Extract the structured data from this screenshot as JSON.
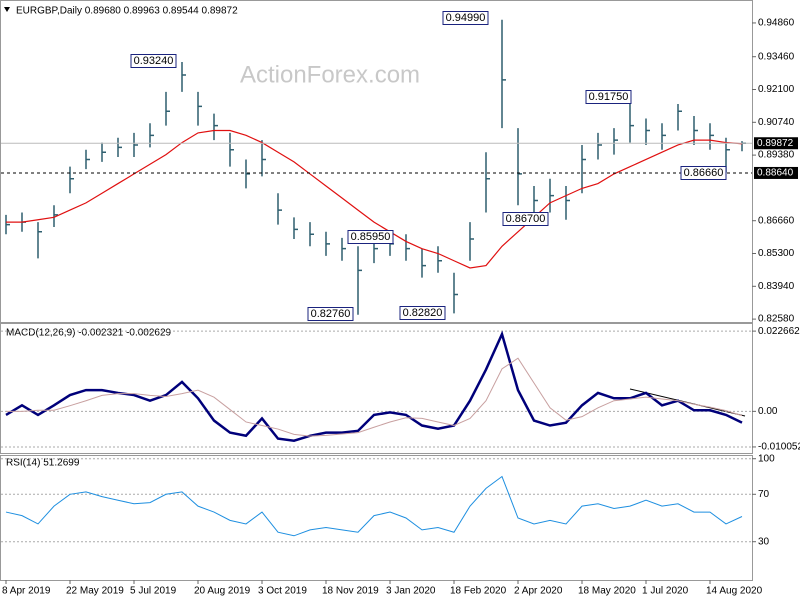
{
  "chart_data": [
    {
      "type": "ohlc",
      "title": "EURGBP,Daily  0.89680 0.89963 0.89544 0.89872",
      "watermark": "ActionForex.com",
      "color": "#2f5f6f",
      "ylim": [
        0.8246,
        0.9577
      ],
      "yticks": [
        {
          "value": 0.9486,
          "label": "0.94860"
        },
        {
          "value": 0.9346,
          "label": "0.93460"
        },
        {
          "value": 0.921,
          "label": "0.92100"
        },
        {
          "value": 0.9074,
          "label": "0.90740"
        },
        {
          "value": 0.8938,
          "label": "0.89380"
        },
        {
          "value": 0.8666,
          "label": "0.86660"
        },
        {
          "value": 0.853,
          "label": "0.85300"
        },
        {
          "value": 0.8394,
          "label": "0.83940"
        },
        {
          "value": 0.8258,
          "label": "0.82580"
        }
      ],
      "high": [
        0.869,
        0.87,
        0.866,
        0.873,
        0.889,
        0.896,
        0.899,
        0.901,
        0.903,
        0.907,
        0.92,
        0.9324,
        0.92,
        0.911,
        0.903,
        0.892,
        0.9,
        0.878,
        0.868,
        0.866,
        0.862,
        0.8595,
        0.856,
        0.86,
        0.862,
        0.861,
        0.855,
        0.856,
        0.845,
        0.866,
        0.895,
        0.9499,
        0.905,
        0.881,
        0.884,
        0.881,
        0.898,
        0.903,
        0.905,
        0.9175,
        0.909,
        0.907,
        0.915,
        0.91,
        0.907,
        0.901,
        0.8996
      ],
      "low": [
        0.861,
        0.862,
        0.851,
        0.864,
        0.878,
        0.888,
        0.891,
        0.893,
        0.893,
        0.897,
        0.906,
        0.92,
        0.906,
        0.9,
        0.889,
        0.88,
        0.885,
        0.865,
        0.859,
        0.856,
        0.852,
        0.85,
        0.8276,
        0.849,
        0.852,
        0.85,
        0.843,
        0.845,
        0.8282,
        0.85,
        0.87,
        0.905,
        0.873,
        0.867,
        0.87,
        0.867,
        0.878,
        0.892,
        0.894,
        0.899,
        0.898,
        0.896,
        0.904,
        0.898,
        0.896,
        0.8866,
        0.8954
      ],
      "close": [
        0.865,
        0.866,
        0.862,
        0.869,
        0.884,
        0.892,
        0.895,
        0.897,
        0.898,
        0.902,
        0.912,
        0.927,
        0.914,
        0.906,
        0.896,
        0.886,
        0.892,
        0.871,
        0.863,
        0.861,
        0.857,
        0.855,
        0.846,
        0.855,
        0.857,
        0.855,
        0.848,
        0.85,
        0.836,
        0.859,
        0.884,
        0.925,
        0.886,
        0.875,
        0.877,
        0.875,
        0.892,
        0.898,
        0.9,
        0.906,
        0.904,
        0.902,
        0.912,
        0.904,
        0.902,
        0.896,
        0.8987
      ],
      "ma": {
        "color": "#e01010",
        "values": [
          0.866,
          0.866,
          0.867,
          0.868,
          0.871,
          0.874,
          0.878,
          0.882,
          0.886,
          0.89,
          0.894,
          0.899,
          0.903,
          0.904,
          0.904,
          0.902,
          0.899,
          0.895,
          0.891,
          0.886,
          0.881,
          0.876,
          0.871,
          0.866,
          0.862,
          0.858,
          0.855,
          0.853,
          0.85,
          0.847,
          0.848,
          0.856,
          0.862,
          0.868,
          0.874,
          0.877,
          0.88,
          0.882,
          0.886,
          0.889,
          0.892,
          0.895,
          0.898,
          0.9,
          0.9,
          0.899,
          0.8985
        ]
      },
      "reference_lines": [
        {
          "value": 0.89872,
          "label": "0.89872",
          "style": "solid"
        },
        {
          "value": 0.8864,
          "label": "0.88640",
          "style": "dashed"
        }
      ],
      "annotations": [
        "0.93240",
        "0.94990",
        "0.85950",
        "0.82760",
        "0.82820",
        "0.91750",
        "0.86700",
        "0.86660"
      ]
    },
    {
      "type": "line",
      "title": "MACD(12,26,9) -0.002321 -0.002629",
      "grid": true,
      "ylim": [
        -0.011763,
        0.024671
      ],
      "yticks": [
        0.022662,
        {
          "value": 0,
          "label": "0.00"
        },
        -0.010052
      ],
      "series": [
        {
          "color": "#00007a",
          "width": 2.5,
          "values": [
            -0.001,
            0.0017,
            -0.001,
            0.0017,
            0.0046,
            0.006,
            0.006,
            0.0052,
            0.0046,
            0.003,
            0.0046,
            0.0083,
            0.0037,
            -0.0026,
            -0.006,
            -0.0069,
            -0.002,
            -0.0077,
            -0.0083,
            -0.0069,
            -0.006,
            -0.006,
            -0.0055,
            -0.001,
            -0.0003,
            -0.001,
            -0.004,
            -0.0049,
            -0.004,
            0.003,
            0.0118,
            0.0218,
            0.006,
            -0.0026,
            -0.004,
            -0.0032,
            0.0017,
            0.0052,
            0.0037,
            0.0037,
            0.0052,
            0.0017,
            0.003,
            0.0003,
            0.0003,
            -0.001,
            -0.0032
          ]
        },
        {
          "color": "#c8a0a0",
          "width": 1,
          "values": [
            0.0,
            0.0,
            0.0003,
            0.0003,
            0.0016,
            0.003,
            0.0045,
            0.005,
            0.005,
            0.0045,
            0.0042,
            0.005,
            0.006,
            0.004,
            0.0005,
            -0.003,
            -0.004,
            -0.005,
            -0.0065,
            -0.007,
            -0.0068,
            -0.0064,
            -0.006,
            -0.0045,
            -0.003,
            -0.0018,
            -0.002,
            -0.003,
            -0.004,
            -0.002,
            0.003,
            0.012,
            0.015,
            0.008,
            0.001,
            -0.0025,
            -0.0015,
            0.001,
            0.003,
            0.0035,
            0.004,
            0.0035,
            0.003,
            0.002,
            0.0012,
            0.0002,
            -0.0012
          ]
        }
      ]
    },
    {
      "type": "line",
      "title": "RSI(14) 51.2699",
      "grid": true,
      "ylim": [
        -2.3,
        102.3
      ],
      "yticks": [
        100,
        70,
        30
      ],
      "categories": [
        "8 Apr 2019",
        null,
        null,
        null,
        "22 May 2019",
        null,
        null,
        null,
        "5 Jul 2019",
        null,
        null,
        null,
        "20 Aug 2019",
        null,
        null,
        null,
        "3 Oct 2019",
        null,
        null,
        null,
        "18 Nov 2019",
        null,
        null,
        null,
        "3 Jan 2020",
        null,
        null,
        null,
        "18 Feb 2020",
        null,
        null,
        null,
        "2 Apr 2020",
        null,
        null,
        null,
        "18 May 2020",
        null,
        null,
        null,
        "1 Jul 2020",
        null,
        null,
        null,
        "14 Aug 2020",
        null,
        null
      ],
      "series": [
        {
          "color": "#1e8fe0",
          "width": 1,
          "values": [
            55,
            52,
            45,
            60,
            70,
            72,
            68,
            65,
            62,
            63,
            70,
            72,
            60,
            55,
            48,
            45,
            55,
            38,
            35,
            40,
            42,
            40,
            38,
            52,
            55,
            50,
            40,
            42,
            38,
            60,
            75,
            85,
            50,
            45,
            48,
            45,
            60,
            62,
            58,
            60,
            65,
            60,
            62,
            55,
            55,
            45,
            51.2699
          ]
        }
      ]
    }
  ]
}
